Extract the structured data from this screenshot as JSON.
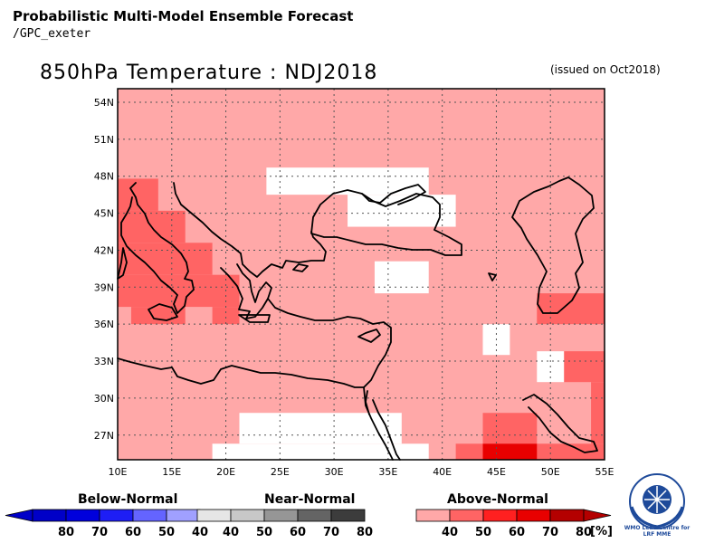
{
  "header": {
    "title": "Probabilistic Multi-Model Ensemble Forecast",
    "source": "/GPC_exeter",
    "map_title": "850hPa Temperature : NDJ2018",
    "issued": "(issued on Oct2018)"
  },
  "map": {
    "lon_range": [
      10,
      55
    ],
    "lat_range": [
      25,
      55
    ],
    "lat_ticks": [
      {
        "value": 54,
        "label": "54N"
      },
      {
        "value": 51,
        "label": "51N"
      },
      {
        "value": 48,
        "label": "48N"
      },
      {
        "value": 45,
        "label": "45N"
      },
      {
        "value": 42,
        "label": "42N"
      },
      {
        "value": 39,
        "label": "39N"
      },
      {
        "value": 36,
        "label": "36N"
      },
      {
        "value": 33,
        "label": "33N"
      },
      {
        "value": 30,
        "label": "30N"
      },
      {
        "value": 27,
        "label": "27N"
      }
    ],
    "lon_ticks": [
      {
        "value": 10,
        "label": "10E"
      },
      {
        "value": 15,
        "label": "15E"
      },
      {
        "value": 20,
        "label": "20E"
      },
      {
        "value": 25,
        "label": "25E"
      },
      {
        "value": 30,
        "label": "30E"
      },
      {
        "value": 35,
        "label": "35E"
      },
      {
        "value": 40,
        "label": "40E"
      },
      {
        "value": 45,
        "label": "45E"
      },
      {
        "value": 50,
        "label": "50E"
      },
      {
        "value": 55,
        "label": "55E"
      }
    ],
    "background_color": "#ffa8a8",
    "cells": [
      {
        "lon": [
          10,
          13.75
        ],
        "lat": [
          47.8,
          45.2
        ],
        "color": "#ff6464"
      },
      {
        "lon": [
          10,
          16.25
        ],
        "lat": [
          45.2,
          42.6
        ],
        "color": "#ff6464"
      },
      {
        "lon": [
          10,
          18.75
        ],
        "lat": [
          42.6,
          40.0
        ],
        "color": "#ff6464"
      },
      {
        "lon": [
          10,
          21.25
        ],
        "lat": [
          40.0,
          37.4
        ],
        "color": "#ff6464"
      },
      {
        "lon": [
          11.25,
          16.25
        ],
        "lat": [
          37.4,
          36.0
        ],
        "color": "#ff6464"
      },
      {
        "lon": [
          18.75,
          21.25
        ],
        "lat": [
          37.4,
          36.0
        ],
        "color": "#ff6464"
      },
      {
        "lon": [
          48.75,
          55
        ],
        "lat": [
          38.5,
          36.0
        ],
        "color": "#ff6464"
      },
      {
        "lon": [
          51.25,
          55
        ],
        "lat": [
          33.8,
          31.3
        ],
        "color": "#ff6464"
      },
      {
        "lon": [
          53.75,
          55
        ],
        "lat": [
          31.3,
          26.3
        ],
        "color": "#ff6464"
      },
      {
        "lon": [
          43.75,
          48.75
        ],
        "lat": [
          28.8,
          26.3
        ],
        "color": "#ff6464"
      },
      {
        "lon": [
          41.25,
          55
        ],
        "lat": [
          26.3,
          25.0
        ],
        "color": "#ff6464"
      },
      {
        "lon": [
          43.75,
          48.75
        ],
        "lat": [
          26.3,
          25.0
        ],
        "color": "#e80000"
      },
      {
        "lon": [
          23.75,
          38.75
        ],
        "lat": [
          48.7,
          46.5
        ],
        "color": "#ffffff"
      },
      {
        "lon": [
          31.25,
          41.25
        ],
        "lat": [
          46.5,
          43.9
        ],
        "color": "#ffffff"
      },
      {
        "lon": [
          33.75,
          38.75
        ],
        "lat": [
          41.1,
          38.5
        ],
        "color": "#ffffff"
      },
      {
        "lon": [
          43.75,
          46.25
        ],
        "lat": [
          36.0,
          33.5
        ],
        "color": "#ffffff"
      },
      {
        "lon": [
          48.75,
          51.25
        ],
        "lat": [
          33.8,
          31.3
        ],
        "color": "#ffffff"
      },
      {
        "lon": [
          21.25,
          36.25
        ],
        "lat": [
          28.8,
          26.3
        ],
        "color": "#ffffff"
      },
      {
        "lon": [
          18.75,
          38.75
        ],
        "lat": [
          26.3,
          25.0
        ],
        "color": "#ffffff"
      }
    ]
  },
  "legend": {
    "below": {
      "label": "Below-Normal",
      "labels": [
        "80",
        "70",
        "60",
        "50",
        "40"
      ],
      "colors": [
        "#0000c8",
        "#0000dc",
        "#1e1ef5",
        "#6464ff",
        "#a0a0ff"
      ]
    },
    "near": {
      "label": "Near-Normal",
      "labels": [
        "40",
        "50",
        "60",
        "70",
        "80"
      ],
      "colors": [
        "#e6e6e6",
        "#c8c8c8",
        "#969696",
        "#646464",
        "#3c3c3c"
      ]
    },
    "above": {
      "label": "Above-Normal",
      "labels": [
        "40",
        "50",
        "60",
        "70",
        "80"
      ],
      "colors": [
        "#ffa8a8",
        "#ff6464",
        "#ff2020",
        "#e80000",
        "#b40000"
      ],
      "unit": "[%]"
    }
  },
  "logo": {
    "line1": "WMO Lead Centre for",
    "line2": "LRF MME"
  }
}
